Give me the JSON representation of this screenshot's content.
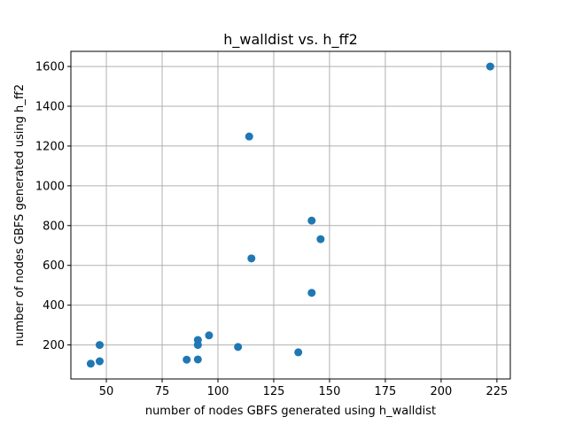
{
  "chart_data": {
    "type": "scatter",
    "title": "h_walldist vs. h_ff2",
    "xlabel": "number of nodes GBFS generated using h_walldist",
    "ylabel": "number of nodes GBFS generated using h_ff2",
    "xlim": [
      34.1,
      231.0
    ],
    "ylim": [
      29,
      1676
    ],
    "xticks": [
      50,
      75,
      100,
      125,
      150,
      175,
      200,
      225
    ],
    "yticks": [
      200,
      400,
      600,
      800,
      1000,
      1200,
      1400,
      1600
    ],
    "grid": true,
    "marker_color": "#1f77b4",
    "points": [
      {
        "x": 43,
        "y": 106
      },
      {
        "x": 47,
        "y": 118
      },
      {
        "x": 47,
        "y": 200
      },
      {
        "x": 86,
        "y": 126
      },
      {
        "x": 91,
        "y": 127
      },
      {
        "x": 91,
        "y": 200
      },
      {
        "x": 91,
        "y": 225
      },
      {
        "x": 96,
        "y": 248
      },
      {
        "x": 109,
        "y": 190
      },
      {
        "x": 114,
        "y": 1248
      },
      {
        "x": 115,
        "y": 635
      },
      {
        "x": 136,
        "y": 163
      },
      {
        "x": 142,
        "y": 462
      },
      {
        "x": 142,
        "y": 825
      },
      {
        "x": 146,
        "y": 732
      },
      {
        "x": 222,
        "y": 1600
      }
    ]
  }
}
